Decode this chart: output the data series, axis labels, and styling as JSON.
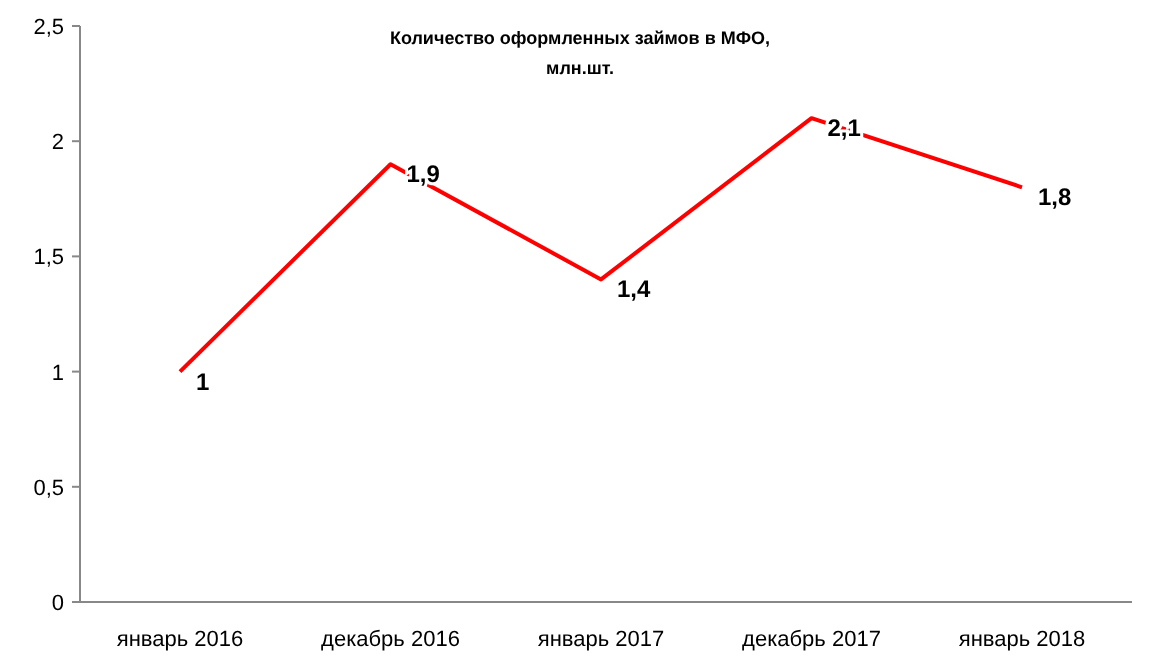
{
  "chart_data": {
    "type": "line",
    "title": "Количество оформленных займов в МФО,\nмлн.шт.",
    "categories": [
      "январь 2016",
      "декабрь 2016",
      "январь 2017",
      "декабрь 2017",
      "январь 2018"
    ],
    "series": [
      {
        "color": "#ff0000",
        "values": [
          1,
          1.9,
          1.4,
          2.1,
          1.8
        ],
        "value_labels": [
          "1",
          "1,9",
          "1,4",
          "2,1",
          "1,8"
        ]
      }
    ],
    "ylim": [
      0,
      2.5
    ],
    "yticks": [
      0,
      {
        "value": 0.5,
        "label": "0,5"
      },
      1,
      {
        "value": 1.5,
        "label": "1,5"
      },
      2,
      {
        "value": 2.5,
        "label": "2,5"
      }
    ],
    "grid": false,
    "marker": "none",
    "line_style": "solid"
  }
}
